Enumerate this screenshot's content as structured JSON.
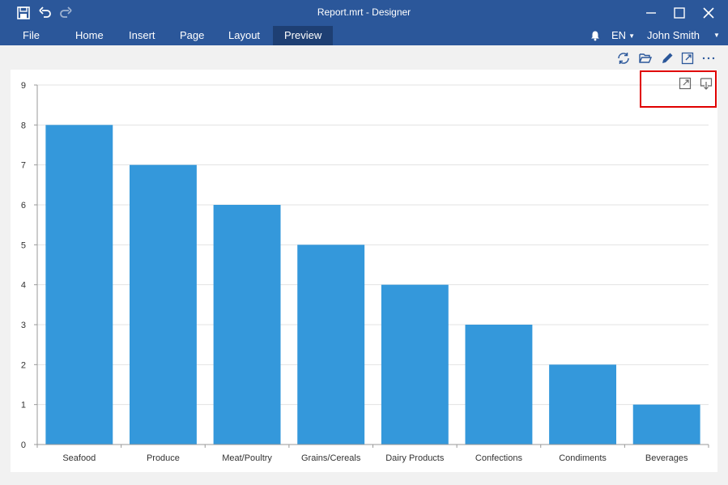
{
  "window": {
    "title": "Report.mrt - Designer"
  },
  "icons": {
    "save": "save-icon",
    "undo": "undo-icon",
    "redo": "redo-icon",
    "minimize": "minimize-icon",
    "maximize": "maximize-icon",
    "close": "close-icon",
    "bell": "bell-icon",
    "refresh": "refresh-icon",
    "open": "open-folder-icon",
    "edit": "pencil-icon",
    "fullscreen": "fullscreen-icon",
    "more": "more-icon",
    "chart_fullscreen": "expand-icon",
    "chart_export": "export-icon"
  },
  "menu": {
    "items": [
      {
        "label": "File"
      },
      {
        "label": "Home"
      },
      {
        "label": "Insert"
      },
      {
        "label": "Page"
      },
      {
        "label": "Layout"
      },
      {
        "label": "Preview",
        "active": true
      }
    ],
    "language": "EN",
    "user": "John Smith"
  },
  "colors": {
    "titlebar": "#2b579a",
    "active_tab": "#1e3f73",
    "bar": "#3498db",
    "highlight": "#e00000"
  },
  "chart_data": {
    "type": "bar",
    "categories": [
      "Seafood",
      "Produce",
      "Meat/Poultry",
      "Grains/Cereals",
      "Dairy Products",
      "Confections",
      "Condiments",
      "Beverages"
    ],
    "values": [
      8,
      7,
      6,
      5,
      4,
      3,
      2,
      1
    ],
    "y_ticks": [
      0,
      1,
      2,
      3,
      4,
      5,
      6,
      7,
      8,
      9
    ],
    "ylim": [
      0,
      9
    ],
    "grid": true,
    "legend": "none"
  }
}
